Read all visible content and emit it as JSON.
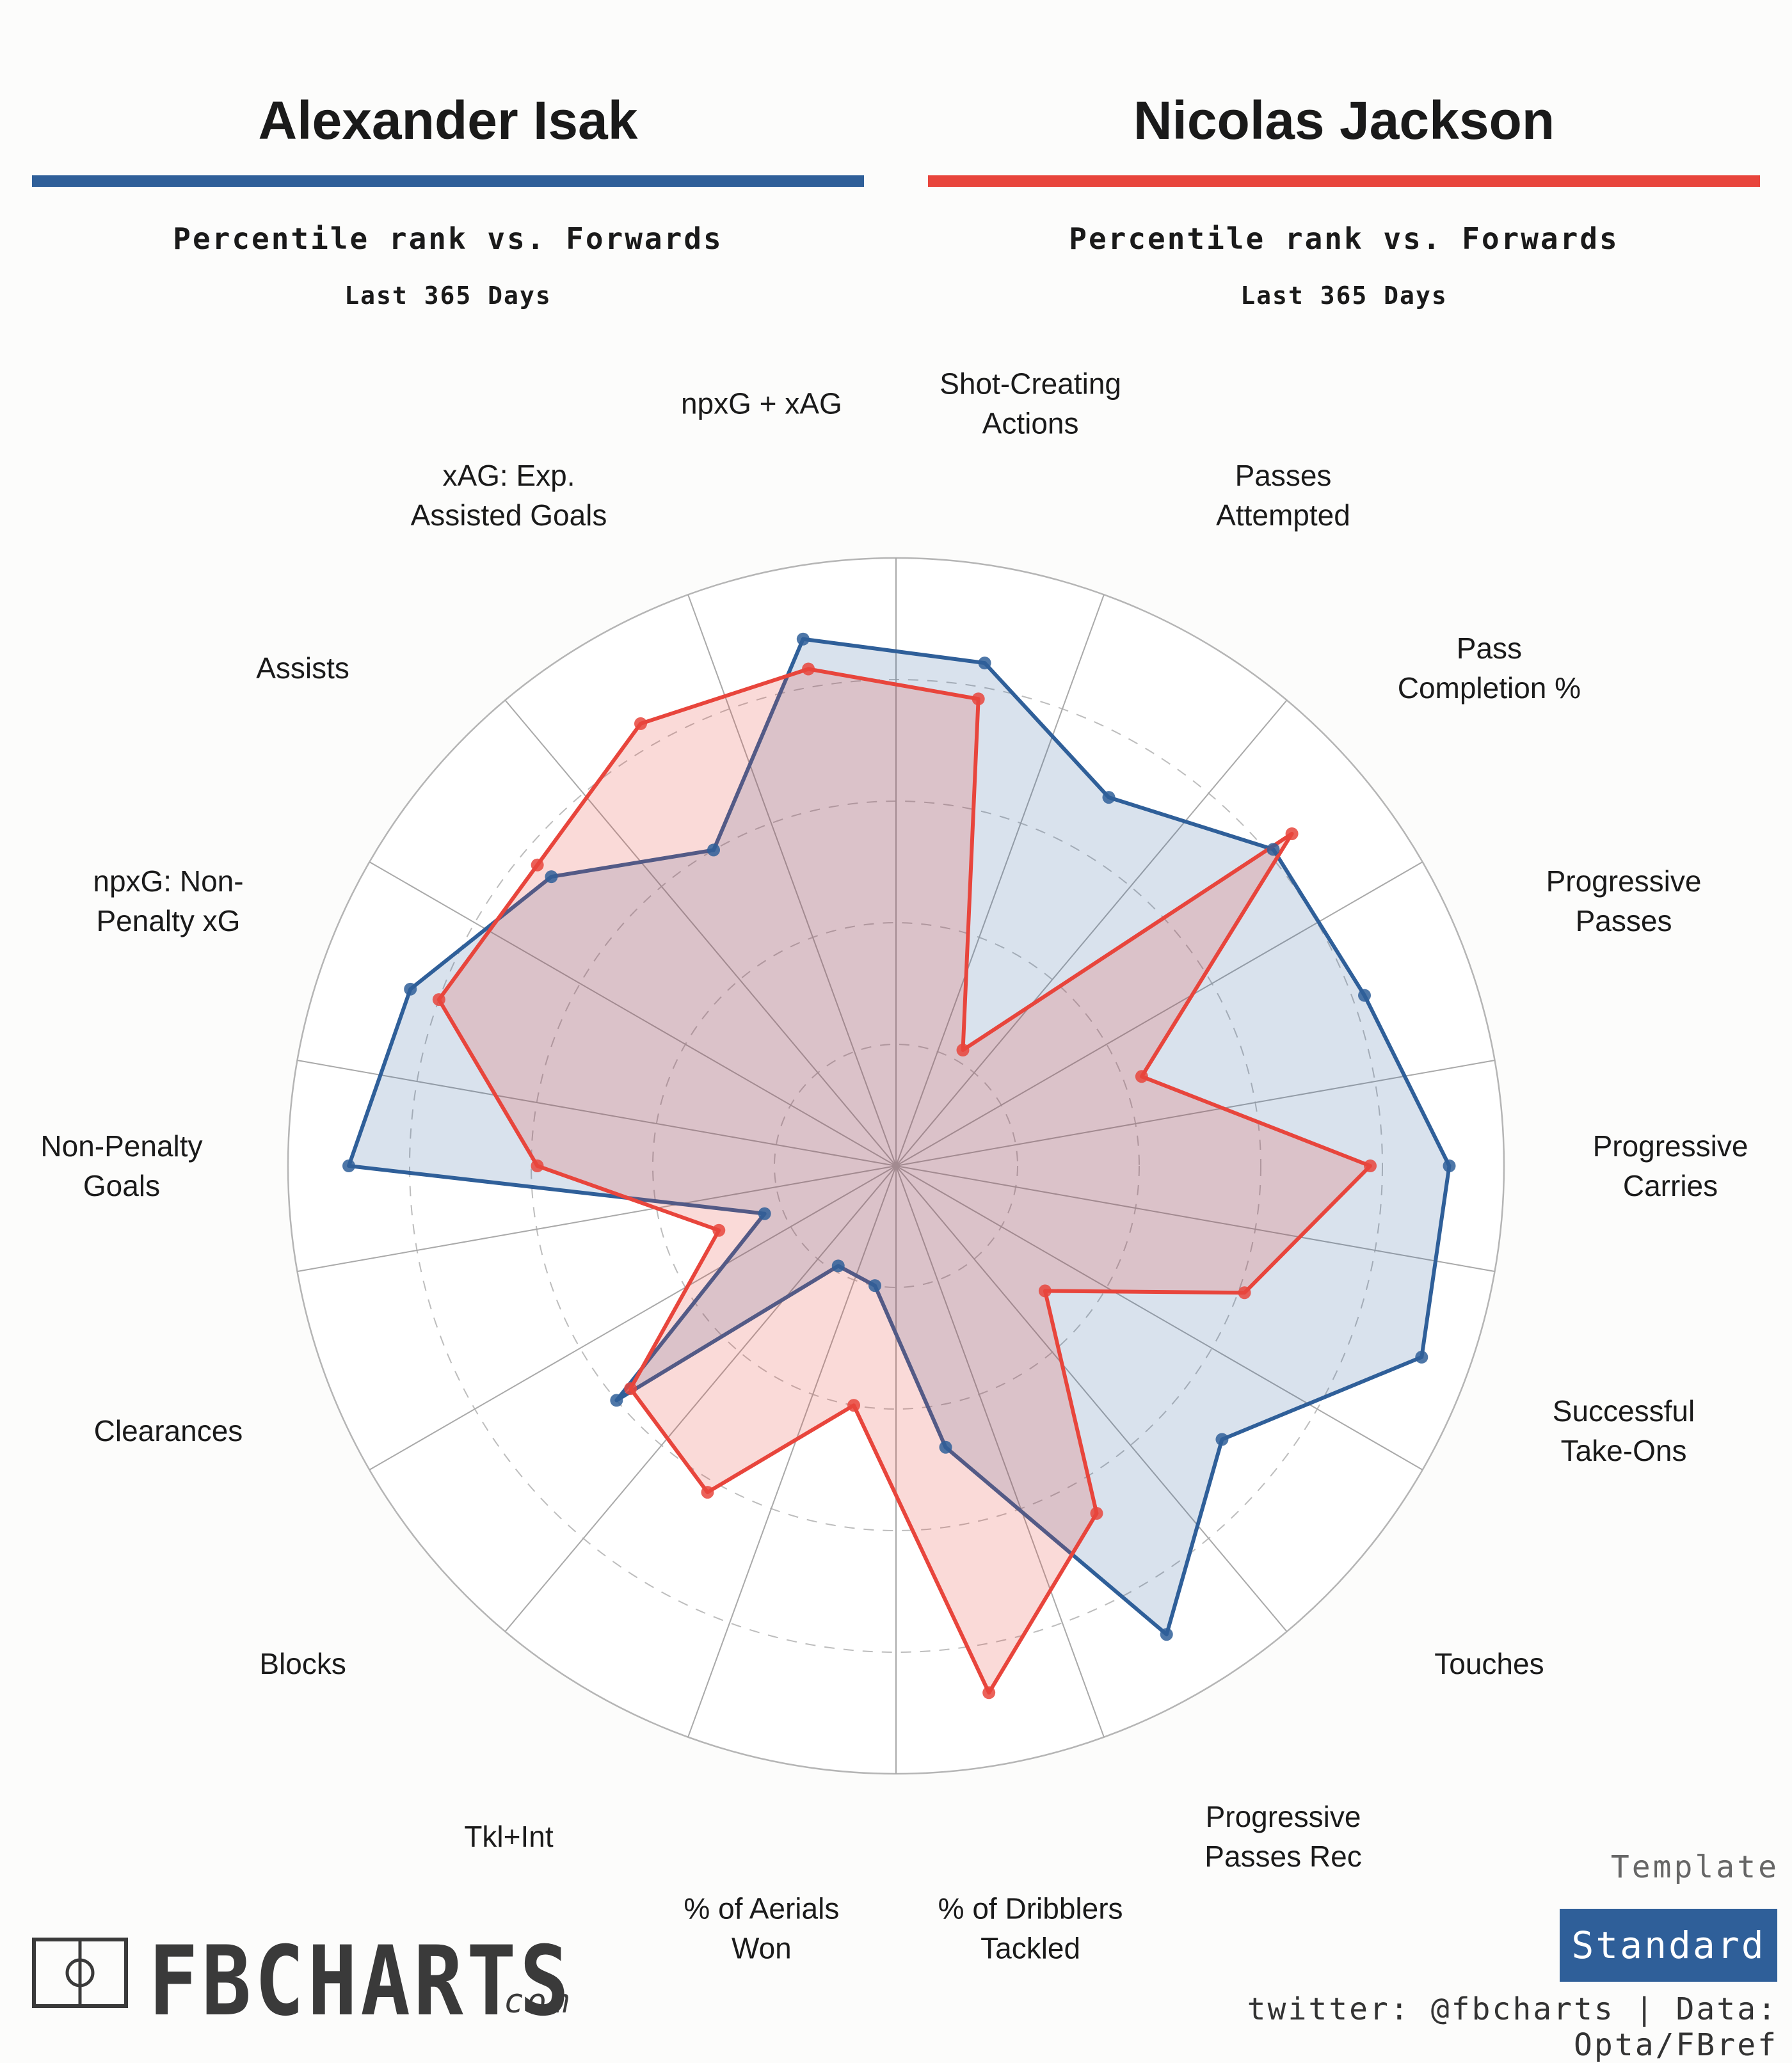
{
  "players": [
    {
      "name": "Alexander Isak",
      "subtitle": "Percentile rank vs. Forwards",
      "period": "Last 365 Days",
      "color": "#2f5f99"
    },
    {
      "name": "Nicolas Jackson",
      "subtitle": "Percentile rank vs. Forwards",
      "period": "Last 365 Days",
      "color": "#e8453c"
    }
  ],
  "chart_data": {
    "type": "radar",
    "rmax": 100,
    "grid_rings": [
      20,
      40,
      60,
      80,
      100
    ],
    "categories": [
      "Shot-Creating Actions",
      "Passes Attempted",
      "Pass Completion %",
      "Progressive Passes",
      "Progressive Carries",
      "Successful Take-Ons",
      "Touches",
      "Progressive Passes Rec",
      "% of Dribblers Tackled",
      "% of Aerials Won",
      "Tkl+Int",
      "Blocks",
      "Clearances",
      "Non-Penalty Goals",
      "npxG: Non-Penalty xG",
      "Assists",
      "xAG: Exp. Assisted Goals",
      "npxG + xAG"
    ],
    "series": [
      {
        "name": "Alexander Isak",
        "color": "#2f5f99",
        "values": [
          84,
          70,
          81,
          82,
          91,
          92,
          70,
          89,
          47,
          20,
          19,
          60,
          23,
          90,
          85,
          74,
          60,
          88
        ]
      },
      {
        "name": "Nicolas Jackson",
        "color": "#e8453c",
        "values": [
          78,
          22,
          85,
          43,
          78,
          61,
          32,
          66,
          88,
          40,
          62,
          57,
          31,
          59,
          80,
          77,
          84,
          83
        ]
      }
    ]
  },
  "labels_display": [
    [
      "Shot-Creating",
      "Actions"
    ],
    [
      "Passes",
      "Attempted"
    ],
    [
      "Pass",
      "Completion %"
    ],
    [
      "Progressive",
      "Passes"
    ],
    [
      "Progressive",
      "Carries"
    ],
    [
      "Successful",
      "Take-Ons"
    ],
    [
      "Touches"
    ],
    [
      "Progressive",
      "Passes Rec"
    ],
    [
      "% of Dribblers",
      "Tackled"
    ],
    [
      "% of Aerials",
      "Won"
    ],
    [
      "Tkl+Int"
    ],
    [
      "Blocks"
    ],
    [
      "Clearances"
    ],
    [
      "Non-Penalty",
      "Goals"
    ],
    [
      "npxG: Non-",
      "Penalty xG"
    ],
    [
      "Assists"
    ],
    [
      "xAG: Exp.",
      "Assisted Goals"
    ],
    [
      "npxG + xAG"
    ]
  ],
  "template": {
    "label": "Template",
    "value": "Standard"
  },
  "credit": "twitter: @fbcharts | Data: Opta/FBref",
  "brand": {
    "name": "FBCHARTS",
    "domain": ".com"
  }
}
